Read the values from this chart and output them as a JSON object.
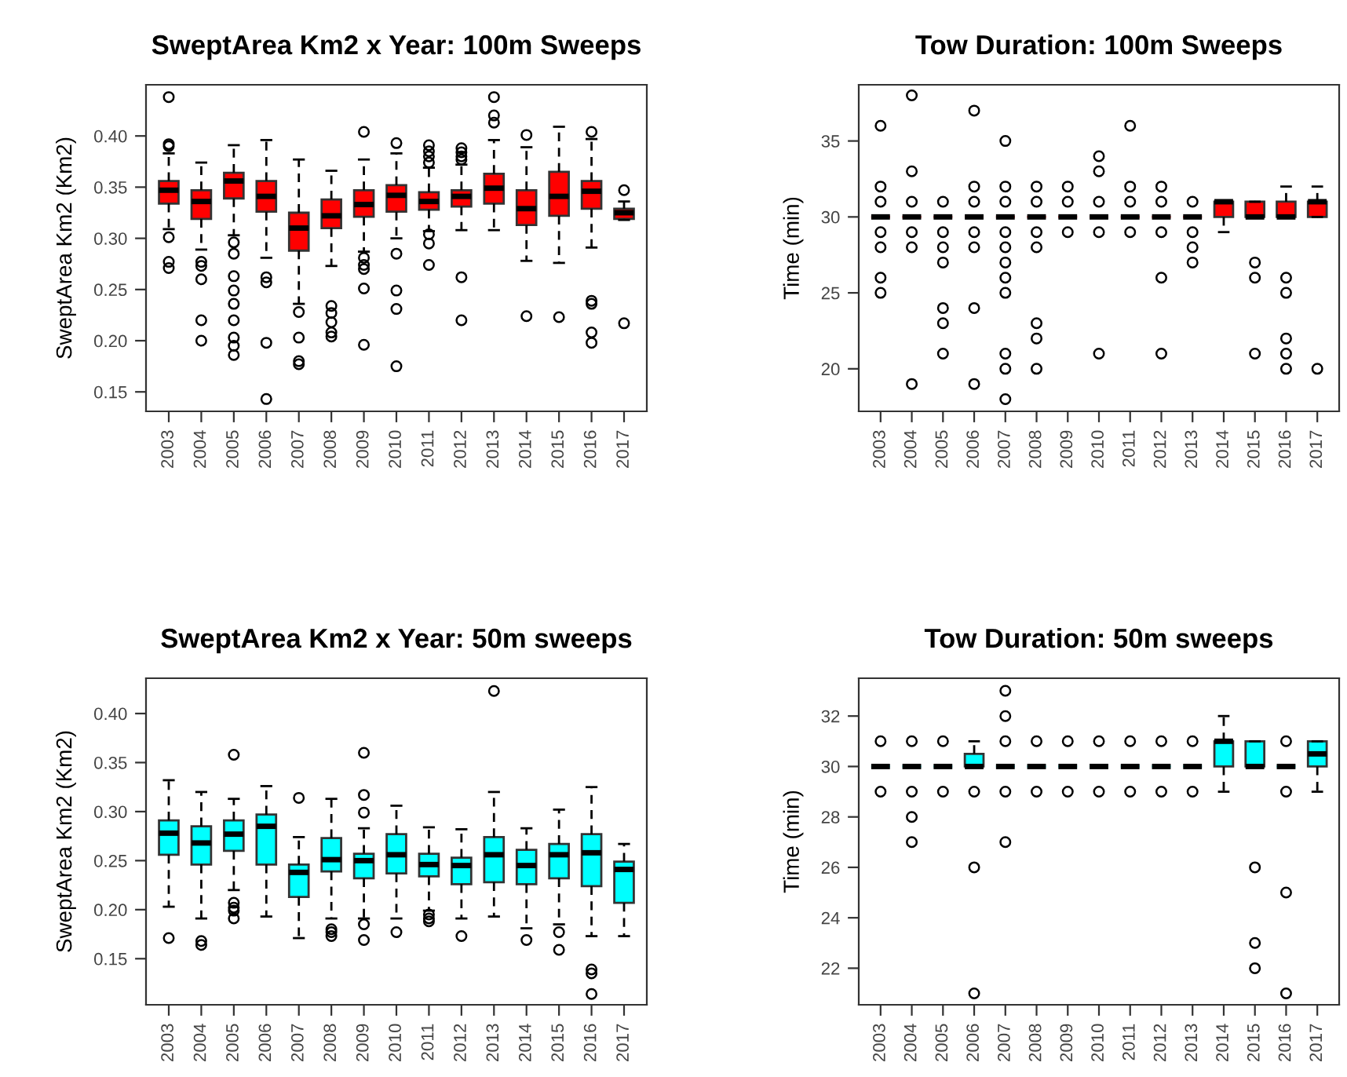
{
  "chart_data": [
    {
      "type": "box",
      "title": "SweptArea Km2 x Year: 100m Sweeps",
      "ylabel": "SweptArea Km2 (Km2)",
      "color": "#ff0000",
      "categories": [
        "2003",
        "2004",
        "2005",
        "2006",
        "2007",
        "2008",
        "2009",
        "2010",
        "2011",
        "2012",
        "2013",
        "2014",
        "2015",
        "2016",
        "2017"
      ],
      "ylim": [
        0.131,
        0.45
      ],
      "yticks": [
        {
          "value": 0.15,
          "label": "0.15"
        },
        {
          "value": 0.2,
          "label": "0.20"
        },
        {
          "value": 0.25,
          "label": "0.25"
        },
        {
          "value": 0.3,
          "label": "0.30"
        },
        {
          "value": 0.35,
          "label": "0.35"
        },
        {
          "value": 0.4,
          "label": "0.40"
        }
      ],
      "boxes": [
        {
          "low": 0.309,
          "q1": 0.334,
          "median": 0.347,
          "q3": 0.356,
          "high": 0.383,
          "outliers": [
            0.438,
            0.392,
            0.39,
            0.301,
            0.277,
            0.271
          ]
        },
        {
          "low": 0.289,
          "q1": 0.319,
          "median": 0.336,
          "q3": 0.347,
          "high": 0.374,
          "outliers": [
            0.277,
            0.273,
            0.26,
            0.22,
            0.2
          ]
        },
        {
          "low": 0.303,
          "q1": 0.339,
          "median": 0.356,
          "q3": 0.364,
          "high": 0.391,
          "outliers": [
            0.296,
            0.285,
            0.263,
            0.249,
            0.236,
            0.22,
            0.203,
            0.195,
            0.186
          ]
        },
        {
          "low": 0.281,
          "q1": 0.326,
          "median": 0.341,
          "q3": 0.356,
          "high": 0.396,
          "outliers": [
            0.262,
            0.257,
            0.198,
            0.143
          ]
        },
        {
          "low": 0.236,
          "q1": 0.288,
          "median": 0.31,
          "q3": 0.325,
          "high": 0.377,
          "outliers": [
            0.228,
            0.203,
            0.18,
            0.177
          ]
        },
        {
          "low": 0.273,
          "q1": 0.31,
          "median": 0.322,
          "q3": 0.338,
          "high": 0.366,
          "outliers": [
            0.234,
            0.227,
            0.218,
            0.208,
            0.204
          ]
        },
        {
          "low": 0.287,
          "q1": 0.321,
          "median": 0.333,
          "q3": 0.347,
          "high": 0.377,
          "outliers": [
            0.404,
            0.281,
            0.274,
            0.27,
            0.251,
            0.196
          ]
        },
        {
          "low": 0.3,
          "q1": 0.326,
          "median": 0.342,
          "q3": 0.352,
          "high": 0.383,
          "outliers": [
            0.393,
            0.285,
            0.249,
            0.231,
            0.175
          ]
        },
        {
          "low": 0.307,
          "q1": 0.328,
          "median": 0.336,
          "q3": 0.345,
          "high": 0.369,
          "outliers": [
            0.391,
            0.385,
            0.38,
            0.374,
            0.304,
            0.295,
            0.274
          ]
        },
        {
          "low": 0.308,
          "q1": 0.331,
          "median": 0.341,
          "q3": 0.347,
          "high": 0.372,
          "outliers": [
            0.388,
            0.384,
            0.38,
            0.377,
            0.262,
            0.22
          ]
        },
        {
          "low": 0.308,
          "q1": 0.334,
          "median": 0.349,
          "q3": 0.363,
          "high": 0.396,
          "outliers": [
            0.438,
            0.42,
            0.413
          ]
        },
        {
          "low": 0.278,
          "q1": 0.313,
          "median": 0.329,
          "q3": 0.347,
          "high": 0.389,
          "outliers": [
            0.401,
            0.224
          ]
        },
        {
          "low": 0.276,
          "q1": 0.322,
          "median": 0.341,
          "q3": 0.365,
          "high": 0.409,
          "outliers": [
            0.223
          ]
        },
        {
          "low": 0.291,
          "q1": 0.329,
          "median": 0.346,
          "q3": 0.356,
          "high": 0.397,
          "outliers": [
            0.404,
            0.239,
            0.236,
            0.208,
            0.198
          ]
        },
        {
          "low": 0.318,
          "q1": 0.319,
          "median": 0.325,
          "q3": 0.329,
          "high": 0.336,
          "outliers": [
            0.347,
            0.217
          ]
        }
      ]
    },
    {
      "type": "box",
      "title": "Tow Duration: 100m Sweeps",
      "ylabel": "Time (min)",
      "color": "#ff0000",
      "categories": [
        "2003",
        "2004",
        "2005",
        "2006",
        "2007",
        "2008",
        "2009",
        "2010",
        "2011",
        "2012",
        "2013",
        "2014",
        "2015",
        "2016",
        "2017"
      ],
      "ylim": [
        17.2,
        38.7
      ],
      "yticks": [
        20,
        25,
        30,
        35
      ],
      "boxes": [
        {
          "low": 30,
          "q1": 30,
          "median": 30,
          "q3": 30,
          "high": 30,
          "outliers": [
            36,
            32,
            31,
            29,
            28,
            26,
            25
          ]
        },
        {
          "low": 30,
          "q1": 30,
          "median": 30,
          "q3": 30,
          "high": 30,
          "outliers": [
            38,
            33,
            31,
            29,
            28,
            19
          ]
        },
        {
          "low": 30,
          "q1": 30,
          "median": 30,
          "q3": 30,
          "high": 30,
          "outliers": [
            31,
            29,
            28,
            27,
            24,
            23,
            21
          ]
        },
        {
          "low": 30,
          "q1": 30,
          "median": 30,
          "q3": 30,
          "high": 30,
          "outliers": [
            37,
            32,
            31,
            29,
            28,
            24,
            19
          ]
        },
        {
          "low": 30,
          "q1": 30,
          "median": 30,
          "q3": 30,
          "high": 30,
          "outliers": [
            35,
            32,
            31,
            29,
            28,
            27,
            26,
            25,
            21,
            20,
            18
          ]
        },
        {
          "low": 30,
          "q1": 30,
          "median": 30,
          "q3": 30,
          "high": 30,
          "outliers": [
            32,
            31,
            29,
            28,
            23,
            22,
            20
          ]
        },
        {
          "low": 30,
          "q1": 30,
          "median": 30,
          "q3": 30,
          "high": 30,
          "outliers": [
            32,
            31,
            29
          ]
        },
        {
          "low": 30,
          "q1": 30,
          "median": 30,
          "q3": 30,
          "high": 30,
          "outliers": [
            34,
            33,
            31,
            29,
            21
          ]
        },
        {
          "low": 30,
          "q1": 30,
          "median": 30,
          "q3": 30,
          "high": 30,
          "outliers": [
            36,
            32,
            31,
            29
          ]
        },
        {
          "low": 30,
          "q1": 30,
          "median": 30,
          "q3": 30,
          "high": 30,
          "outliers": [
            32,
            31,
            29,
            26,
            21
          ]
        },
        {
          "low": 30,
          "q1": 30,
          "median": 30,
          "q3": 30,
          "high": 30,
          "outliers": [
            31,
            29,
            28,
            27
          ]
        },
        {
          "low": 29,
          "q1": 30,
          "median": 31,
          "q3": 31,
          "high": 31
        },
        {
          "low": 30,
          "q1": 30,
          "median": 30,
          "q3": 31,
          "high": 31,
          "outliers": [
            27,
            26,
            21
          ]
        },
        {
          "low": 30,
          "q1": 30,
          "median": 30,
          "q3": 31,
          "high": 32,
          "outliers": [
            26,
            25,
            22,
            21,
            20
          ]
        },
        {
          "low": 30,
          "q1": 30,
          "median": 31,
          "q3": 31,
          "high": 32,
          "outliers": [
            20
          ]
        }
      ]
    },
    {
      "type": "box",
      "title": "SweptArea Km2 x Year: 50m sweeps",
      "ylabel": "SweptArea Km2 (Km2)",
      "color": "#00ffff",
      "categories": [
        "2003",
        "2004",
        "2005",
        "2006",
        "2007",
        "2008",
        "2009",
        "2010",
        "2011",
        "2012",
        "2013",
        "2014",
        "2015",
        "2016",
        "2017"
      ],
      "ylim": [
        0.103,
        0.436
      ],
      "yticks": [
        {
          "value": 0.15,
          "label": "0.15"
        },
        {
          "value": 0.2,
          "label": "0.20"
        },
        {
          "value": 0.25,
          "label": "0.25"
        },
        {
          "value": 0.3,
          "label": "0.30"
        },
        {
          "value": 0.35,
          "label": "0.35"
        },
        {
          "value": 0.4,
          "label": "0.40"
        }
      ],
      "boxes": [
        {
          "low": 0.203,
          "q1": 0.256,
          "median": 0.278,
          "q3": 0.291,
          "high": 0.332,
          "outliers": [
            0.171
          ]
        },
        {
          "low": 0.191,
          "q1": 0.246,
          "median": 0.268,
          "q3": 0.285,
          "high": 0.32,
          "outliers": [
            0.168,
            0.164
          ]
        },
        {
          "low": 0.22,
          "q1": 0.26,
          "median": 0.277,
          "q3": 0.291,
          "high": 0.313,
          "outliers": [
            0.358,
            0.207,
            0.202,
            0.199,
            0.191
          ]
        },
        {
          "low": 0.193,
          "q1": 0.246,
          "median": 0.285,
          "q3": 0.297,
          "high": 0.326
        },
        {
          "low": 0.171,
          "q1": 0.213,
          "median": 0.238,
          "q3": 0.246,
          "high": 0.274,
          "outliers": [
            0.314
          ]
        },
        {
          "low": 0.191,
          "q1": 0.239,
          "median": 0.251,
          "q3": 0.273,
          "high": 0.313,
          "outliers": [
            0.18,
            0.177,
            0.173
          ]
        },
        {
          "low": 0.191,
          "q1": 0.232,
          "median": 0.25,
          "q3": 0.257,
          "high": 0.283,
          "outliers": [
            0.36,
            0.317,
            0.299,
            0.185,
            0.169
          ]
        },
        {
          "low": 0.191,
          "q1": 0.237,
          "median": 0.256,
          "q3": 0.277,
          "high": 0.306,
          "outliers": [
            0.177
          ]
        },
        {
          "low": 0.199,
          "q1": 0.234,
          "median": 0.246,
          "q3": 0.257,
          "high": 0.284,
          "outliers": [
            0.195,
            0.191,
            0.188
          ]
        },
        {
          "low": 0.191,
          "q1": 0.226,
          "median": 0.245,
          "q3": 0.253,
          "high": 0.282,
          "outliers": [
            0.173
          ]
        },
        {
          "low": 0.193,
          "q1": 0.228,
          "median": 0.256,
          "q3": 0.274,
          "high": 0.32,
          "outliers": [
            0.423
          ]
        },
        {
          "low": 0.181,
          "q1": 0.226,
          "median": 0.245,
          "q3": 0.261,
          "high": 0.283,
          "outliers": [
            0.169
          ]
        },
        {
          "low": 0.185,
          "q1": 0.232,
          "median": 0.256,
          "q3": 0.267,
          "high": 0.302,
          "outliers": [
            0.177,
            0.159
          ]
        },
        {
          "low": 0.173,
          "q1": 0.224,
          "median": 0.258,
          "q3": 0.277,
          "high": 0.325,
          "outliers": [
            0.139,
            0.135,
            0.114
          ]
        },
        {
          "low": 0.173,
          "q1": 0.207,
          "median": 0.241,
          "q3": 0.249,
          "high": 0.267
        }
      ]
    },
    {
      "type": "box",
      "title": "Tow Duration: 50m sweeps",
      "ylabel": "Time (min)",
      "color": "#00ffff",
      "categories": [
        "2003",
        "2004",
        "2005",
        "2006",
        "2007",
        "2008",
        "2009",
        "2010",
        "2011",
        "2012",
        "2013",
        "2014",
        "2015",
        "2016",
        "2017"
      ],
      "ylim": [
        20.55,
        33.5
      ],
      "yticks": [
        22,
        24,
        26,
        28,
        30,
        32
      ],
      "boxes": [
        {
          "low": 30,
          "q1": 30,
          "median": 30,
          "q3": 30,
          "high": 30,
          "outliers": [
            31,
            29
          ]
        },
        {
          "low": 30,
          "q1": 30,
          "median": 30,
          "q3": 30,
          "high": 30,
          "outliers": [
            31,
            29,
            28,
            27
          ]
        },
        {
          "low": 30,
          "q1": 30,
          "median": 30,
          "q3": 30,
          "high": 30,
          "outliers": [
            31,
            29
          ]
        },
        {
          "low": 30,
          "q1": 30,
          "median": 30,
          "q3": 30.5,
          "high": 31,
          "outliers": [
            29,
            26,
            21
          ]
        },
        {
          "low": 30,
          "q1": 30,
          "median": 30,
          "q3": 30,
          "high": 30,
          "outliers": [
            33,
            32,
            31,
            29,
            27
          ]
        },
        {
          "low": 30,
          "q1": 30,
          "median": 30,
          "q3": 30,
          "high": 30,
          "outliers": [
            31,
            29
          ]
        },
        {
          "low": 30,
          "q1": 30,
          "median": 30,
          "q3": 30,
          "high": 30,
          "outliers": [
            31,
            29
          ]
        },
        {
          "low": 30,
          "q1": 30,
          "median": 30,
          "q3": 30,
          "high": 30,
          "outliers": [
            31,
            29
          ]
        },
        {
          "low": 30,
          "q1": 30,
          "median": 30,
          "q3": 30,
          "high": 30,
          "outliers": [
            31,
            29
          ]
        },
        {
          "low": 30,
          "q1": 30,
          "median": 30,
          "q3": 30,
          "high": 30,
          "outliers": [
            31,
            29
          ]
        },
        {
          "low": 30,
          "q1": 30,
          "median": 30,
          "q3": 30,
          "high": 30,
          "outliers": [
            31,
            29
          ]
        },
        {
          "low": 29,
          "q1": 30,
          "median": 31,
          "q3": 31,
          "high": 32
        },
        {
          "low": 30,
          "q1": 30,
          "median": 30,
          "q3": 31,
          "high": 31,
          "outliers": [
            26,
            23,
            22
          ]
        },
        {
          "low": 30,
          "q1": 30,
          "median": 30,
          "q3": 30,
          "high": 30,
          "outliers": [
            31,
            29,
            25,
            21
          ]
        },
        {
          "low": 29,
          "q1": 30,
          "median": 30.5,
          "q3": 31,
          "high": 31
        }
      ]
    }
  ]
}
